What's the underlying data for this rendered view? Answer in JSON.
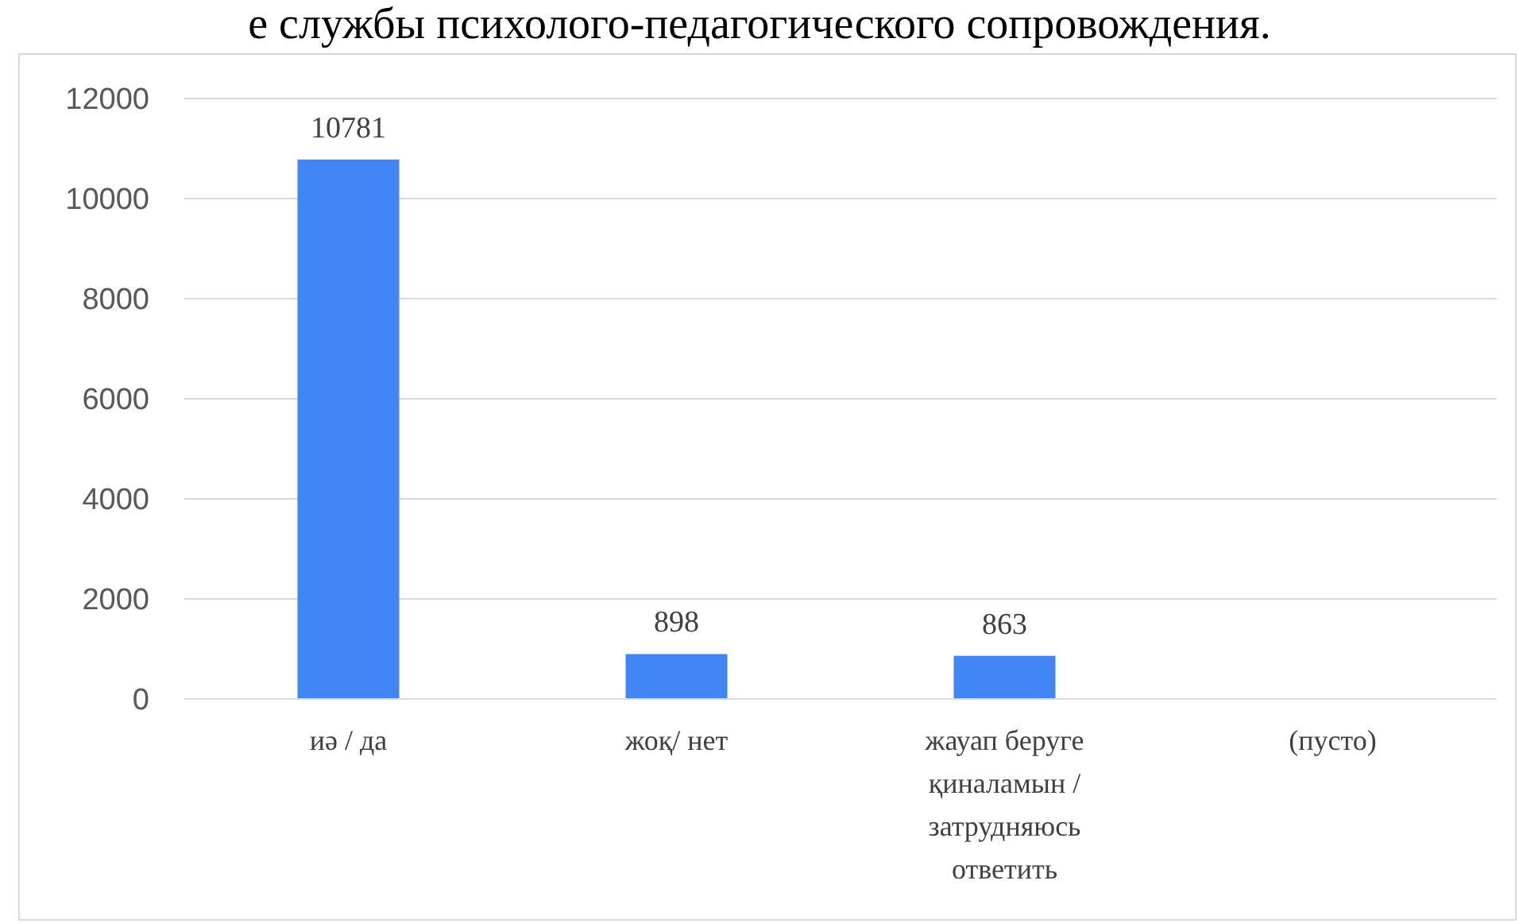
{
  "chart_data": {
    "type": "bar",
    "title": "е службы психолого-педагогического сопровождения.",
    "categories": [
      "иә / да",
      "жоқ/ нет",
      "жауап беруге қиналамын / затрудняюсь ответить",
      "(пусто)"
    ],
    "values": [
      10781,
      898,
      863,
      null
    ],
    "color": "#4285f4",
    "ylim": [
      0,
      12000
    ],
    "yticks": [
      0,
      2000,
      4000,
      6000,
      8000,
      10000,
      12000
    ],
    "grid": "y",
    "data_labels": true
  }
}
